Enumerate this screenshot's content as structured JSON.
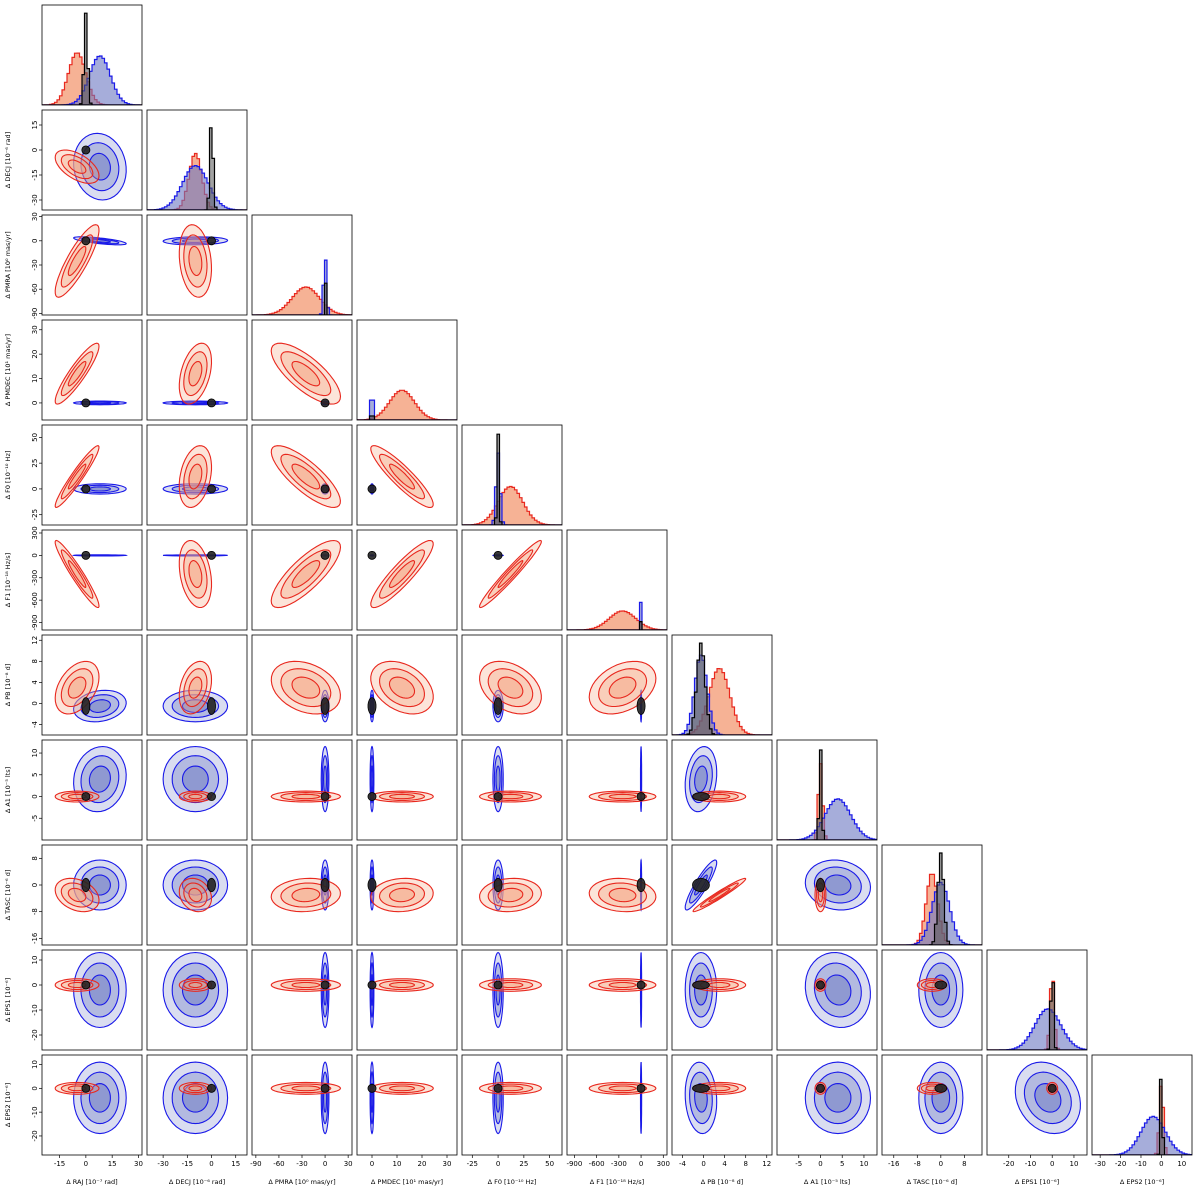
{
  "chart_data": {
    "type": "corner",
    "colors": {
      "red": "#e8281e",
      "red_fill": "#f4a582",
      "blue": "#1a1ae8",
      "blue_fill": "#6b77c2",
      "black": "#000000"
    },
    "params": [
      {
        "key": "RAJ",
        "label": "Δ RAJ [10⁻⁷ rad]",
        "ticks": [
          "-15",
          "0",
          "15",
          "30"
        ],
        "range": [
          -25,
          32
        ],
        "red_mean": -5,
        "red_sd": 5,
        "blue_mean": 8,
        "blue_sd": 6,
        "black_mean": 0,
        "black_sd": 1
      },
      {
        "key": "DECJ",
        "label": "Δ DECJ [10⁻⁶ rad]",
        "ticks": [
          "-30",
          "-15",
          "0",
          "15"
        ],
        "range": [
          -40,
          22
        ],
        "red_mean": -10,
        "red_sd": 4,
        "blue_mean": -10,
        "blue_sd": 8,
        "black_mean": 0,
        "black_sd": 1
      },
      {
        "key": "PMRA",
        "label": "Δ PMRA [10⁰ mas/yr]",
        "ticks": [
          "-90",
          "-60",
          "-30",
          "0",
          "30"
        ],
        "range": [
          -95,
          35
        ],
        "red_mean": -25,
        "red_sd": 18,
        "blue_mean": 0,
        "blue_sd": 2,
        "black_mean": 0,
        "black_sd": 0.6
      },
      {
        "key": "PMDEC",
        "label": "Δ PMDEC [10¹ mas/yr]",
        "ticks": [
          "0",
          "10",
          "20",
          "30"
        ],
        "range": [
          -6,
          34
        ],
        "red_mean": 12,
        "red_sd": 5,
        "blue_mean": 0,
        "blue_sd": 0.3,
        "black_mean": 0,
        "black_sd": 0.2
      },
      {
        "key": "F0",
        "label": "Δ F0 [10⁻¹⁰ Hz]",
        "ticks": [
          "-25",
          "0",
          "25",
          "50"
        ],
        "range": [
          -35,
          62
        ],
        "red_mean": 12,
        "red_sd": 12,
        "blue_mean": 0,
        "blue_sd": 2,
        "black_mean": 0,
        "black_sd": 1
      },
      {
        "key": "F1",
        "label": "Δ F1 [10⁻¹⁸ Hz/s]",
        "ticks": [
          "-900",
          "-600",
          "-300",
          "0",
          "300"
        ],
        "range": [
          -1000,
          350
        ],
        "red_mean": -250,
        "red_sd": 180,
        "blue_mean": 0,
        "blue_sd": 3,
        "black_mean": 0,
        "black_sd": 2
      },
      {
        "key": "PB",
        "label": "Δ PB [10⁻⁸ d]",
        "ticks": [
          "-4",
          "0",
          "4",
          "8",
          "12"
        ],
        "range": [
          -6,
          13
        ],
        "red_mean": 3,
        "red_sd": 2,
        "blue_mean": -0.5,
        "blue_sd": 1.2,
        "black_mean": -0.5,
        "black_sd": 0.8
      },
      {
        "key": "A1",
        "label": "Δ A1 [10⁻⁵ lts]",
        "ticks": [
          "-5",
          "0",
          "5",
          "10"
        ],
        "range": [
          -10,
          13
        ],
        "red_mean": 0,
        "red_sd": 0.5,
        "blue_mean": 4,
        "blue_sd": 3,
        "black_mean": 0,
        "black_sd": 0.3
      },
      {
        "key": "TASC",
        "label": "Δ TASC [10⁻⁶ d]",
        "ticks": [
          "-16",
          "-8",
          "0",
          "8"
        ],
        "range": [
          -20,
          14
        ],
        "red_mean": -3,
        "red_sd": 2,
        "blue_mean": 0,
        "blue_sd": 3,
        "black_mean": 0,
        "black_sd": 1
      },
      {
        "key": "EPS1",
        "label": "Δ EPS1 [10⁻⁶]",
        "ticks": [
          "-20",
          "-10",
          "0",
          "10"
        ],
        "range": [
          -30,
          16
        ],
        "red_mean": 0,
        "red_sd": 1,
        "blue_mean": -2,
        "blue_sd": 6,
        "black_mean": 0,
        "black_sd": 0.6
      },
      {
        "key": "EPS2",
        "label": "Δ EPS2 [10⁻⁶]",
        "ticks": [
          "-30",
          "-20",
          "-10",
          "0",
          "10"
        ],
        "range": [
          -34,
          15
        ],
        "red_mean": 0,
        "red_sd": 1,
        "blue_mean": -4,
        "blue_sd": 6,
        "black_mean": 0,
        "black_sd": 0.5
      }
    ],
    "y_tick_overrides": {
      "DECJ": [
        "-30",
        "-15",
        "0",
        "15"
      ],
      "PMRA": [
        "-90",
        "-60",
        "-30",
        "0",
        "30"
      ],
      "PMDEC": [
        "0",
        "10",
        "20",
        "30"
      ],
      "F0": [
        "-25",
        "0",
        "25",
        "50"
      ],
      "F1": [
        "-900",
        "-600",
        "-300",
        "0",
        "300"
      ],
      "PB": [
        "-4",
        "0",
        "4",
        "8",
        "12"
      ],
      "A1": [
        "-5",
        "0",
        "5",
        "10"
      ],
      "TASC": [
        "-16",
        "-8",
        "0",
        "8"
      ],
      "EPS1": [
        "-20",
        "-10",
        "0",
        "10"
      ],
      "EPS2": [
        "-20",
        "-10",
        "0",
        "10"
      ]
    },
    "y_ranges": {
      "DECJ": [
        -36,
        24
      ],
      "PMRA": [
        -92,
        32
      ],
      "PMDEC": [
        -7,
        34
      ],
      "F0": [
        -35,
        62
      ],
      "F1": [
        -1000,
        340
      ],
      "PB": [
        -6,
        13
      ],
      "A1": [
        -10,
        13
      ],
      "TASC": [
        -18,
        12
      ],
      "EPS1": [
        -26,
        14
      ],
      "EPS2": [
        -28,
        14
      ]
    },
    "red_correlations": {
      "DECJ|RAJ": 0.55,
      "PMRA|RAJ": -0.85,
      "PMRA|DECJ": 0.2,
      "PMDEC|RAJ": -0.9,
      "PMDEC|DECJ": -0.4,
      "PMDEC|PMRA": 0.75,
      "F0|RAJ": -0.95,
      "F0|DECJ": -0.3,
      "F0|PMRA": 0.8,
      "F0|PMDEC": 0.9,
      "F1|RAJ": 0.95,
      "F1|DECJ": 0.3,
      "F1|PMRA": -0.8,
      "F1|PMDEC": -0.9,
      "F1|F0": -0.97,
      "PB|RAJ": -0.4,
      "PB|DECJ": -0.3,
      "PB|PMRA": 0.3,
      "PB|PMDEC": 0.35,
      "PB|F0": 0.35,
      "PB|F1": -0.35,
      "TASC|RAJ": 0.3,
      "TASC|DECJ": 0.2,
      "TASC|PMRA": -0.1,
      "TASC|PMDEC": -0.1,
      "TASC|F0": -0.1,
      "TASC|F1": 0.1,
      "TASC|PB": -0.97
    },
    "blue_correlations": {
      "DECJ|RAJ": 0.1,
      "PMRA|RAJ": 0.7,
      "PMRA|DECJ": -0.1,
      "PB|RAJ": -0.2,
      "A1|RAJ": -0.1,
      "A1|PB": -0.2,
      "TASC|PB": -0.9,
      "TASC|A1": 0.1,
      "EPS1|A1": 0.1,
      "EPS2|PB": 0.1,
      "EPS2|EPS1": 0.2
    }
  }
}
